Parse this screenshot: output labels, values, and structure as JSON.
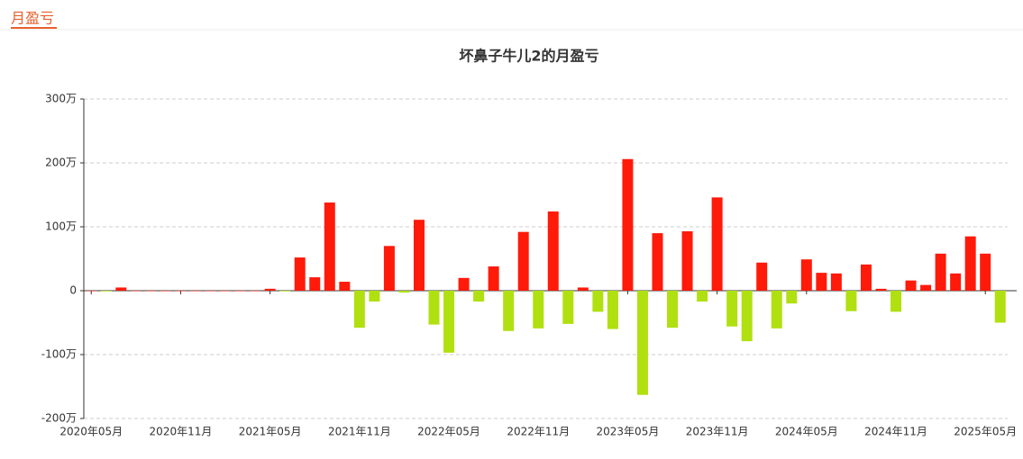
{
  "header": {
    "tab": "月盈亏"
  },
  "chart_data": {
    "type": "bar",
    "title": "坏鼻子牛儿2的月盈亏",
    "categories": [
      "2020年05月",
      null,
      null,
      null,
      null,
      null,
      "2020年11月",
      null,
      null,
      null,
      null,
      null,
      "2021年05月",
      null,
      null,
      null,
      null,
      null,
      "2021年11月",
      null,
      null,
      null,
      null,
      null,
      "2022年05月",
      null,
      null,
      null,
      null,
      null,
      "2022年11月",
      null,
      null,
      null,
      null,
      null,
      "2023年05月",
      null,
      null,
      null,
      null,
      null,
      "2023年11月",
      null,
      null,
      null,
      null,
      null,
      "2024年05月",
      null,
      null,
      null,
      null,
      null,
      "2024年11月",
      null,
      null,
      null,
      null,
      null,
      "2025年05月",
      null
    ],
    "values": [
      0,
      -1,
      5,
      0,
      0,
      0,
      0,
      0,
      0,
      0,
      0,
      0,
      3,
      -1,
      52,
      21,
      138,
      14,
      -58,
      -17,
      70,
      -3,
      111,
      -53,
      -97,
      20,
      -17,
      38,
      -63,
      92,
      -59,
      124,
      -52,
      5,
      -33,
      -60,
      206,
      -163,
      90,
      -58,
      93,
      -17,
      146,
      -56,
      -79,
      44,
      -59,
      -20,
      49,
      28,
      27,
      -32,
      41,
      3,
      -33,
      16,
      9,
      58,
      27,
      85,
      58,
      -50
    ],
    "positive_color": "#ff1a0a",
    "negative_color": "#b0e010",
    "ylim": [
      -200,
      300
    ],
    "yticks": [
      {
        "value": -200,
        "label": "-200万"
      },
      {
        "value": -100,
        "label": "-100万"
      },
      0,
      {
        "value": 100,
        "label": "100万"
      },
      {
        "value": 200,
        "label": "200万"
      },
      {
        "value": 300,
        "label": "300万"
      }
    ],
    "grid": true
  }
}
